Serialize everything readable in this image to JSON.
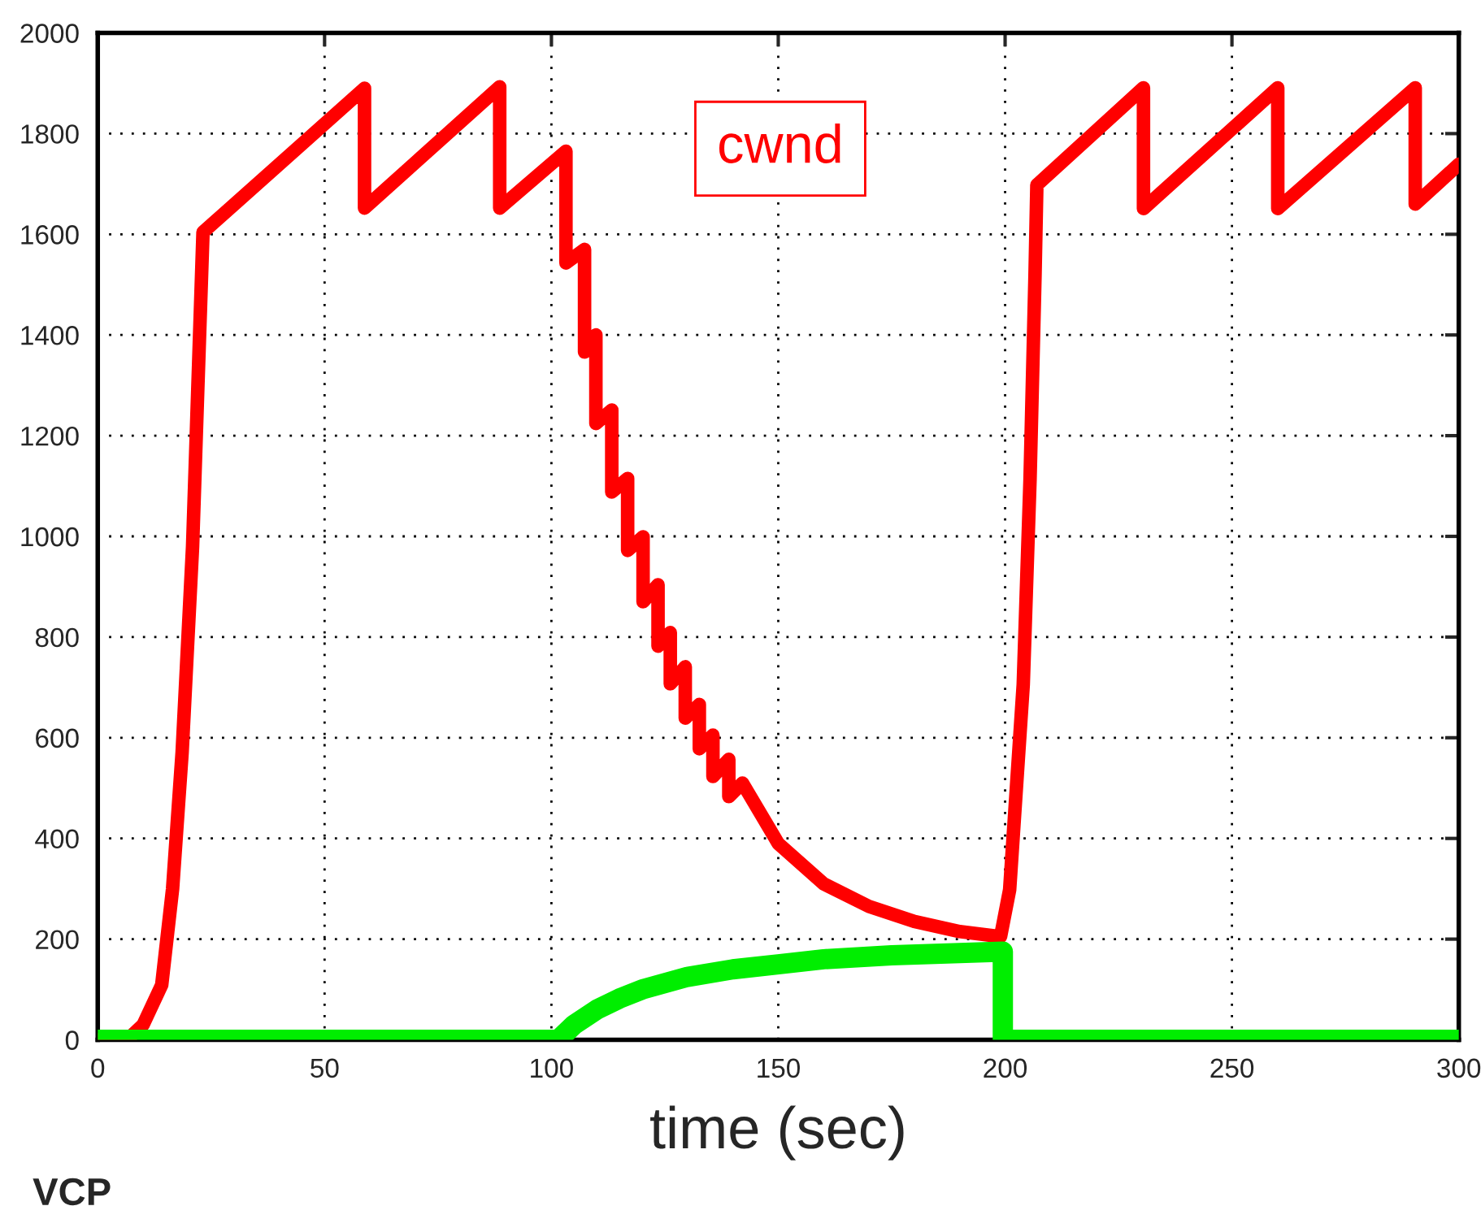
{
  "chart_data": {
    "type": "line",
    "xlabel": "time (sec)",
    "annotations": [
      "VCP"
    ],
    "xlim": [
      0,
      300
    ],
    "ylim": [
      0,
      2000
    ],
    "xticks": [
      0,
      50,
      100,
      150,
      200,
      250,
      300
    ],
    "yticks": [
      0,
      200,
      400,
      600,
      800,
      1000,
      1200,
      1400,
      1600,
      1800,
      2000
    ],
    "grid": true,
    "line_style": "solid",
    "marker": "none",
    "series": [
      {
        "name": "cwnd",
        "color": "#ff0000",
        "x": [
          0,
          6.5,
          10,
          14.1,
          16.5,
          18.6,
          20.9,
          22.4,
          23.2,
          58.8,
          58.8,
          88.6,
          88.6,
          103.2,
          103.2,
          107.3,
          107.3,
          109.8,
          109.8,
          113.3,
          113.3,
          116.8,
          116.8,
          120.2,
          120.2,
          123.5,
          123.5,
          126.2,
          126.2,
          129.5,
          129.5,
          132.6,
          132.6,
          135.6,
          135.6,
          139.1,
          139.1,
          142.1,
          150,
          160,
          170,
          180,
          190,
          199,
          201,
          204,
          205.5,
          206.6,
          207,
          230.5,
          230.5,
          260.1,
          260.1,
          290.4,
          290.4,
          300
        ],
        "values": [
          0,
          0,
          30,
          109,
          300,
          571,
          979,
          1387,
          1604,
          1890,
          1652,
          1893,
          1652,
          1765,
          1543,
          1570,
          1366,
          1400,
          1224,
          1251,
          1088,
          1115,
          972,
          999,
          870,
          904,
          782,
          809,
          707,
          741,
          639,
          666,
          578,
          605,
          523,
          557,
          483,
          510,
          390,
          310,
          265,
          235,
          215,
          205,
          298,
          706,
          1114,
          1521,
          1698,
          1891,
          1651,
          1891,
          1651,
          1891,
          1660,
          1739
        ]
      },
      {
        "color": "#00ee00",
        "x": [
          0,
          101.5,
          105,
          110,
          115,
          120,
          130,
          140,
          150,
          160,
          175,
          199.5,
          199.5,
          300
        ],
        "values": [
          0,
          0,
          30,
          60,
          82,
          100,
          125,
          140,
          150,
          160,
          168,
          175,
          0,
          0
        ]
      }
    ]
  }
}
